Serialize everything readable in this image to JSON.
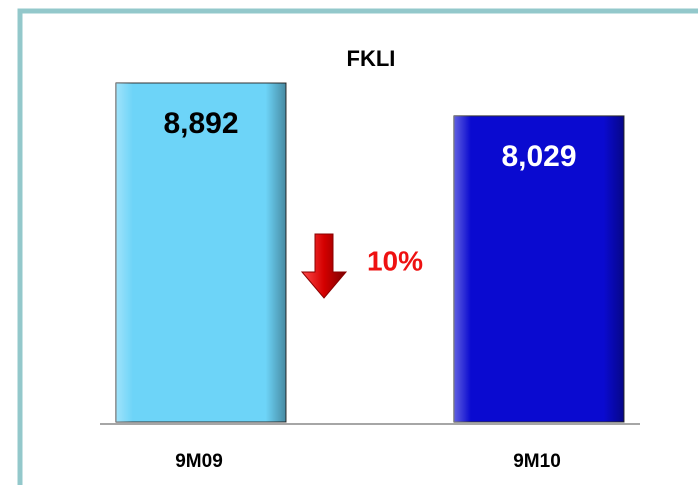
{
  "chart_data": {
    "type": "bar",
    "title": "FKLI",
    "categories": [
      "9M09",
      "9M10"
    ],
    "values": [
      8892,
      8029
    ],
    "value_labels": [
      "8,892",
      "8,029"
    ],
    "colors": [
      "#6dd4f8",
      "#0a0ad0"
    ],
    "label_colors": [
      "#000000",
      "#ffffff"
    ],
    "annotation": "10%"
  }
}
